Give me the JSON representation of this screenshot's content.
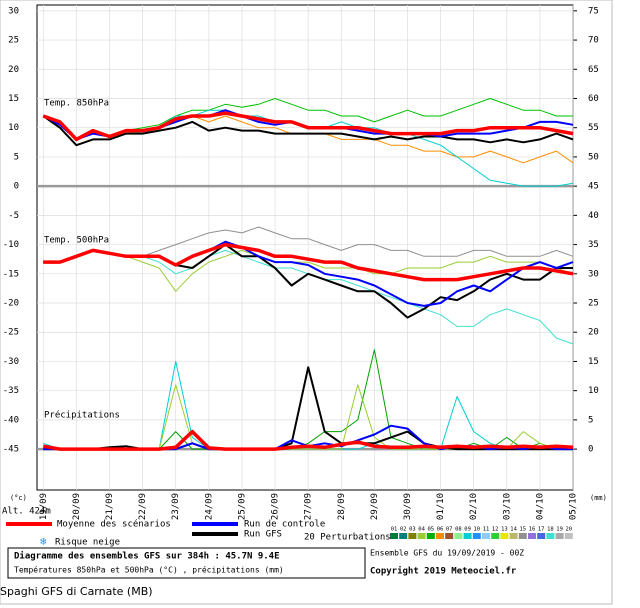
{
  "chart_data": {
    "type": "line",
    "label_850": "Temp. 850hPa",
    "label_500": "Temp. 500hPa",
    "label_precip": "Précipitations",
    "unit_left": "(°c)",
    "unit_right": "(mm)",
    "altitude": "Alt. 424m",
    "legend_mean": "Moyenne des scénarios",
    "legend_control": "Run de controle",
    "legend_gfs": "Run GFS",
    "legend_perturbations": "20 Perturbations",
    "snow_risk": "Risque neige",
    "title": "Diagramme des ensembles GFS sur 384h : 45.7N 9.4E",
    "subtitle": "Températures 850hPa et 500hPa (°C) , précipitations (mm)",
    "run": "Ensemble GFS du 19/09/2019 - 00Z",
    "copyright": "Copyright 2019 Meteociel.fr",
    "caption": "Spaghi GFS di Carnate (MB)",
    "perturbations": [
      {
        "label": "01",
        "color": "#007a3d"
      },
      {
        "label": "02",
        "color": "#008080"
      },
      {
        "label": "03",
        "color": "#808000"
      },
      {
        "label": "04",
        "color": "#9acd32"
      },
      {
        "label": "05",
        "color": "#00b000"
      },
      {
        "label": "06",
        "color": "#ff8c00"
      },
      {
        "label": "07",
        "color": "#a0522d"
      },
      {
        "label": "08",
        "color": "#90ee90"
      },
      {
        "label": "09",
        "color": "#00ced1"
      },
      {
        "label": "10",
        "color": "#1e90ff"
      },
      {
        "label": "11",
        "color": "#87cefa"
      },
      {
        "label": "12",
        "color": "#32cd32"
      },
      {
        "label": "13",
        "color": "#e6e600"
      },
      {
        "label": "14",
        "color": "#bdb76b"
      },
      {
        "label": "15",
        "color": "#909090"
      },
      {
        "label": "16",
        "color": "#9370db"
      },
      {
        "label": "17",
        "color": "#4169e1"
      },
      {
        "label": "18",
        "color": "#40e0d0"
      },
      {
        "label": "19",
        "color": "#a9a9a9"
      },
      {
        "label": "20",
        "color": "#c0c0c0"
      }
    ],
    "x": [
      0,
      0.5,
      1,
      1.5,
      2,
      2.5,
      3,
      3.5,
      4,
      4.5,
      5,
      5.5,
      6,
      6.5,
      7,
      7.5,
      8,
      8.5,
      9,
      9.5,
      10,
      10.5,
      11,
      11.5,
      12,
      12.5,
      13,
      13.5,
      14,
      14.5,
      15,
      15.5,
      16
    ],
    "xlim": [
      -0.1,
      16
    ],
    "xticks": [
      {
        "value": 0,
        "label": "19/09"
      },
      {
        "value": 1,
        "label": "20/09"
      },
      {
        "value": 2,
        "label": "21/09"
      },
      {
        "value": 3,
        "label": "22/09"
      },
      {
        "value": 4,
        "label": "23/09"
      },
      {
        "value": 5,
        "label": "24/09"
      },
      {
        "value": 6,
        "label": "25/09"
      },
      {
        "value": 7,
        "label": "26/09"
      },
      {
        "value": 8,
        "label": "27/09"
      },
      {
        "value": 9,
        "label": "28/09"
      },
      {
        "value": 10,
        "label": "29/09"
      },
      {
        "value": 11,
        "label": "30/09"
      },
      {
        "value": 12,
        "label": "01/10"
      },
      {
        "value": 13,
        "label": "02/10"
      },
      {
        "value": 14,
        "label": "03/10"
      },
      {
        "value": 15,
        "label": "04/10"
      },
      {
        "value": 16,
        "label": "05/10"
      }
    ],
    "ylim": [
      -52,
      31
    ],
    "yticks": [
      30,
      25,
      20,
      15,
      10,
      5,
      0,
      -5,
      -10,
      -15,
      -20,
      -25,
      -30,
      -35,
      -40,
      -45
    ],
    "y2lim": [
      -7,
      76
    ],
    "y2ticks": [
      75,
      70,
      65,
      60,
      55,
      50,
      45,
      40,
      35,
      30,
      25,
      20,
      15,
      10,
      5,
      0
    ],
    "separators": [
      0,
      -45
    ],
    "grid": true,
    "series": [
      {
        "color": "#00c000",
        "values": [
          12,
          11,
          8,
          9.5,
          8.5,
          9.5,
          10,
          10.5,
          12,
          13,
          13,
          14,
          13.5,
          14,
          15,
          14,
          13,
          13,
          12,
          12,
          11,
          12,
          13,
          12,
          12,
          13,
          14,
          15,
          14,
          13,
          13,
          12,
          12
        ]
      },
      {
        "color": "#ff8c00",
        "values": [
          12,
          11,
          8,
          9,
          8.5,
          9,
          9.5,
          10,
          11,
          12,
          11,
          12,
          11,
          10,
          10,
          9,
          9,
          9,
          8,
          8,
          8,
          7,
          7,
          6,
          6,
          5,
          5,
          6,
          5,
          4,
          5,
          6,
          4
        ]
      },
      {
        "color": "#00ced1",
        "values": [
          12,
          11,
          8,
          9.5,
          8.5,
          9.5,
          9,
          10,
          12,
          12,
          13,
          13,
          12,
          12,
          11,
          11,
          10,
          10,
          11,
          10,
          10,
          9,
          9,
          8,
          7,
          5,
          3,
          1,
          0.5,
          0,
          0,
          0,
          0.5
        ]
      },
      {
        "color": "#909090",
        "values": [
          -13,
          -13,
          -12,
          -11,
          -11.5,
          -12,
          -12,
          -11,
          -10,
          -9,
          -8,
          -7.5,
          -8,
          -7,
          -8,
          -9,
          -9,
          -10,
          -11,
          -10,
          -10,
          -11,
          -11,
          -12,
          -12,
          -12,
          -11,
          -11,
          -12,
          -12,
          -12,
          -11,
          -12
        ]
      },
      {
        "color": "#40e0d0",
        "values": [
          -13,
          -13,
          -12,
          -11,
          -11.5,
          -12,
          -12,
          -13,
          -15,
          -14,
          -12,
          -11,
          -12,
          -13,
          -14,
          -14,
          -15,
          -16,
          -16,
          -17,
          -18,
          -19,
          -20,
          -21,
          -22,
          -24,
          -24,
          -22,
          -21,
          -22,
          -23,
          -26,
          -27
        ]
      },
      {
        "color": "#9acd32",
        "values": [
          -13,
          -13,
          -12,
          -11,
          -11.5,
          -12,
          -13,
          -14,
          -18,
          -15,
          -13,
          -12,
          -11,
          -12,
          -13,
          -13,
          -13,
          -14,
          -14,
          -14,
          -15,
          -15,
          -14,
          -14,
          -14,
          -13,
          -13,
          -12,
          -13,
          -13,
          -13,
          -14,
          -15
        ]
      },
      {
        "color": "#00ced1",
        "axis": "y2",
        "values": [
          1,
          0,
          0,
          0,
          0,
          0,
          0,
          0,
          15,
          2,
          0,
          0,
          0,
          0,
          0,
          0,
          0,
          0,
          0,
          0,
          1,
          0,
          0,
          0,
          0,
          9,
          3,
          1,
          0,
          0,
          0,
          0,
          0
        ]
      },
      {
        "color": "#00a000",
        "axis": "y2",
        "values": [
          0,
          0,
          0,
          0,
          0,
          0,
          0,
          0,
          3,
          0,
          0,
          0,
          0,
          0,
          0,
          0,
          1,
          3,
          3,
          5,
          17,
          2,
          1,
          0,
          0,
          0,
          1,
          0,
          2,
          0,
          1,
          0,
          0
        ]
      },
      {
        "color": "#9acd32",
        "axis": "y2",
        "values": [
          0,
          0,
          0,
          0,
          0,
          0,
          0,
          0,
          11,
          1,
          0,
          0,
          0,
          0,
          0,
          0,
          0,
          0,
          0,
          11,
          2,
          0,
          0,
          0,
          0,
          0,
          0,
          0,
          0,
          3,
          1,
          0,
          0
        ]
      },
      {
        "name": "Run GFS 850",
        "color": "#000000",
        "values": [
          12,
          10,
          7,
          8,
          8,
          9,
          9,
          9.5,
          10,
          11,
          9.5,
          10,
          9.5,
          9.5,
          9,
          9,
          9,
          9,
          9,
          8.5,
          8,
          8.5,
          8,
          8.5,
          8.5,
          8,
          8,
          7.5,
          8,
          7.5,
          8,
          9,
          8
        ]
      },
      {
        "name": "Run de controle 850",
        "color": "#0000ff",
        "values": [
          12,
          10.5,
          8,
          9,
          8.5,
          9.5,
          9.5,
          10,
          11,
          12,
          12,
          13,
          12,
          11,
          10.5,
          11,
          10,
          10,
          10,
          9.5,
          9,
          9,
          9,
          9,
          8.5,
          9,
          9,
          9,
          9.5,
          10,
          11,
          11,
          10.5
        ]
      },
      {
        "name": "Moyenne 850",
        "color": "#ff0000",
        "values": [
          12,
          11,
          8,
          9.5,
          8.5,
          9.5,
          9.5,
          10,
          11.5,
          12,
          12,
          12.5,
          12,
          11.5,
          11,
          11,
          10,
          10,
          10,
          10,
          9.5,
          9,
          9,
          9,
          9,
          9.5,
          9.5,
          10,
          10,
          10,
          10,
          9.5,
          9
        ]
      },
      {
        "name": "Run GFS 500",
        "color": "#000000",
        "values": [
          -13,
          -13,
          -12,
          -11,
          -11.5,
          -12,
          -12,
          -12,
          -13.5,
          -14,
          -12,
          -10,
          -12,
          -12,
          -14,
          -17,
          -15,
          -16,
          -17,
          -18,
          -18,
          -20,
          -22.5,
          -21,
          -19,
          -19.5,
          -18,
          -16,
          -15,
          -16,
          -16,
          -14,
          -14
        ]
      },
      {
        "name": "Run de controle 500",
        "color": "#0000ff",
        "values": [
          -13,
          -13,
          -12,
          -11,
          -11.5,
          -12,
          -12,
          -12,
          -13.5,
          -12,
          -11,
          -9.5,
          -10.5,
          -12,
          -13,
          -13,
          -13.5,
          -15,
          -15.5,
          -16,
          -17,
          -18.5,
          -20,
          -20.5,
          -20,
          -18,
          -17,
          -18,
          -16,
          -14,
          -13,
          -14,
          -13
        ]
      },
      {
        "name": "Moyenne 500",
        "color": "#ff0000",
        "values": [
          -13,
          -13,
          -12,
          -11,
          -11.5,
          -12,
          -12,
          -12,
          -13.5,
          -12,
          -11,
          -10,
          -10.5,
          -11,
          -12,
          -12,
          -12.5,
          -13,
          -13,
          -14,
          -14.5,
          -15,
          -15.5,
          -16,
          -16,
          -16,
          -15.5,
          -15,
          -14.5,
          -14,
          -14,
          -14.5,
          -15
        ]
      },
      {
        "name": "Run GFS precip",
        "color": "#000000",
        "axis": "y2",
        "values": [
          0,
          0,
          0,
          0,
          0.3,
          0.5,
          0,
          0,
          0,
          1,
          0,
          0,
          0,
          0,
          0,
          1,
          14,
          3,
          1,
          1,
          1,
          2,
          3,
          1,
          0.3,
          0,
          0,
          0,
          0,
          0,
          0,
          0,
          0
        ]
      },
      {
        "name": "Run de controle precip",
        "color": "#0000ff",
        "axis": "y2",
        "values": [
          0,
          0,
          0,
          0,
          0,
          0,
          0,
          0,
          0,
          1,
          0,
          0,
          0,
          0,
          0,
          1.5,
          0.5,
          1,
          0.5,
          1.5,
          2.5,
          4,
          3.5,
          1,
          0,
          0.5,
          0.5,
          0,
          0.3,
          0,
          0.5,
          0,
          0
        ]
      },
      {
        "name": "Moyenne precip",
        "color": "#ff0000",
        "axis": "y2",
        "values": [
          0.5,
          0,
          0,
          0,
          0,
          0,
          0,
          0,
          0.3,
          3,
          0.2,
          0,
          0,
          0,
          0,
          0.3,
          0.5,
          0.3,
          0.8,
          1.2,
          0.5,
          0.3,
          0.3,
          0.5,
          0.3,
          0.5,
          0.3,
          0.5,
          0.3,
          0.5,
          0.3,
          0.5,
          0.3
        ]
      }
    ]
  }
}
